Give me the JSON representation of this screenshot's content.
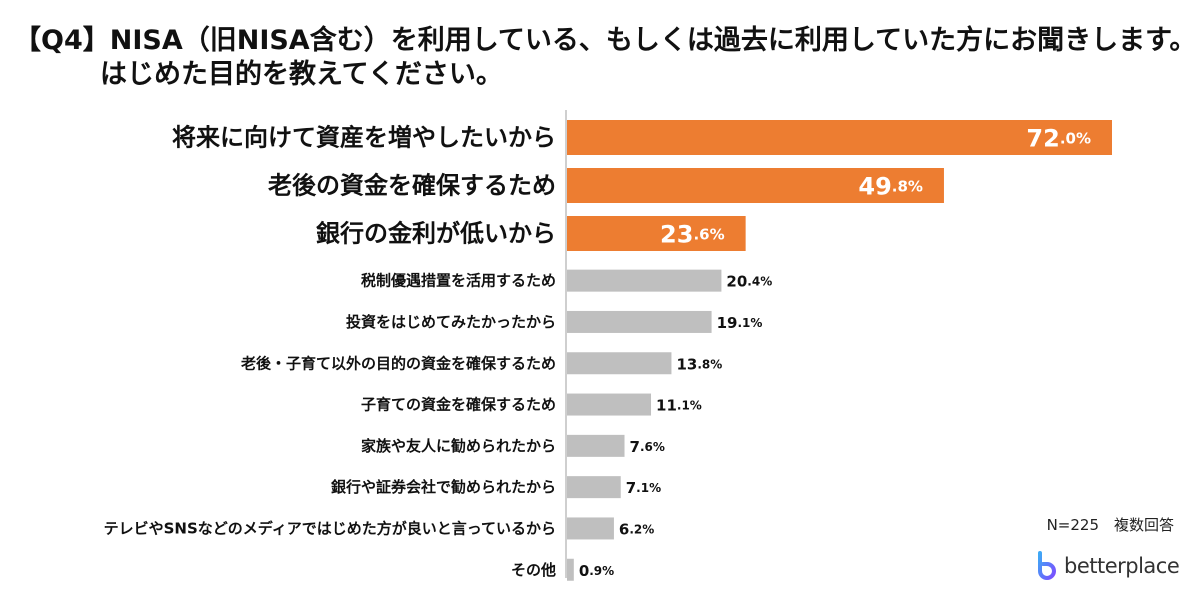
{
  "title": {
    "line1": "【Q4】NISA（旧NISA含む）を利用している、もしくは過去に利用していた方にお聞きします。",
    "line2": "はじめた目的を教えてください。"
  },
  "footnote": "N=225　複数回答",
  "brand": {
    "name": "betterplace"
  },
  "colors": {
    "highlight": "#ED7D31",
    "normal": "#BFBFBF",
    "axis": "#BFBFBF"
  },
  "chart_data": {
    "type": "bar",
    "orientation": "horizontal",
    "unit": "%",
    "xlim": [
      0,
      72.0
    ],
    "categories": [
      "将来に向けて資産を増やしたいから",
      "老後の資金を確保するため",
      "銀行の金利が低いから",
      "税制優遇措置を活用するため",
      "投資をはじめてみたかったから",
      "老後・子育て以外の目的の資金を確保するため",
      "子育ての資金を確保するため",
      "家族や友人に勧められたから",
      "銀行や証券会社で勧められたから",
      "テレビやSNSなどのメディアではじめた方が良いと言っているから",
      "その他"
    ],
    "values": [
      72.0,
      49.8,
      23.6,
      20.4,
      19.1,
      13.8,
      11.1,
      7.6,
      7.1,
      6.2,
      0.9
    ],
    "highlighted": [
      true,
      true,
      true,
      false,
      false,
      false,
      false,
      false,
      false,
      false,
      false
    ]
  }
}
